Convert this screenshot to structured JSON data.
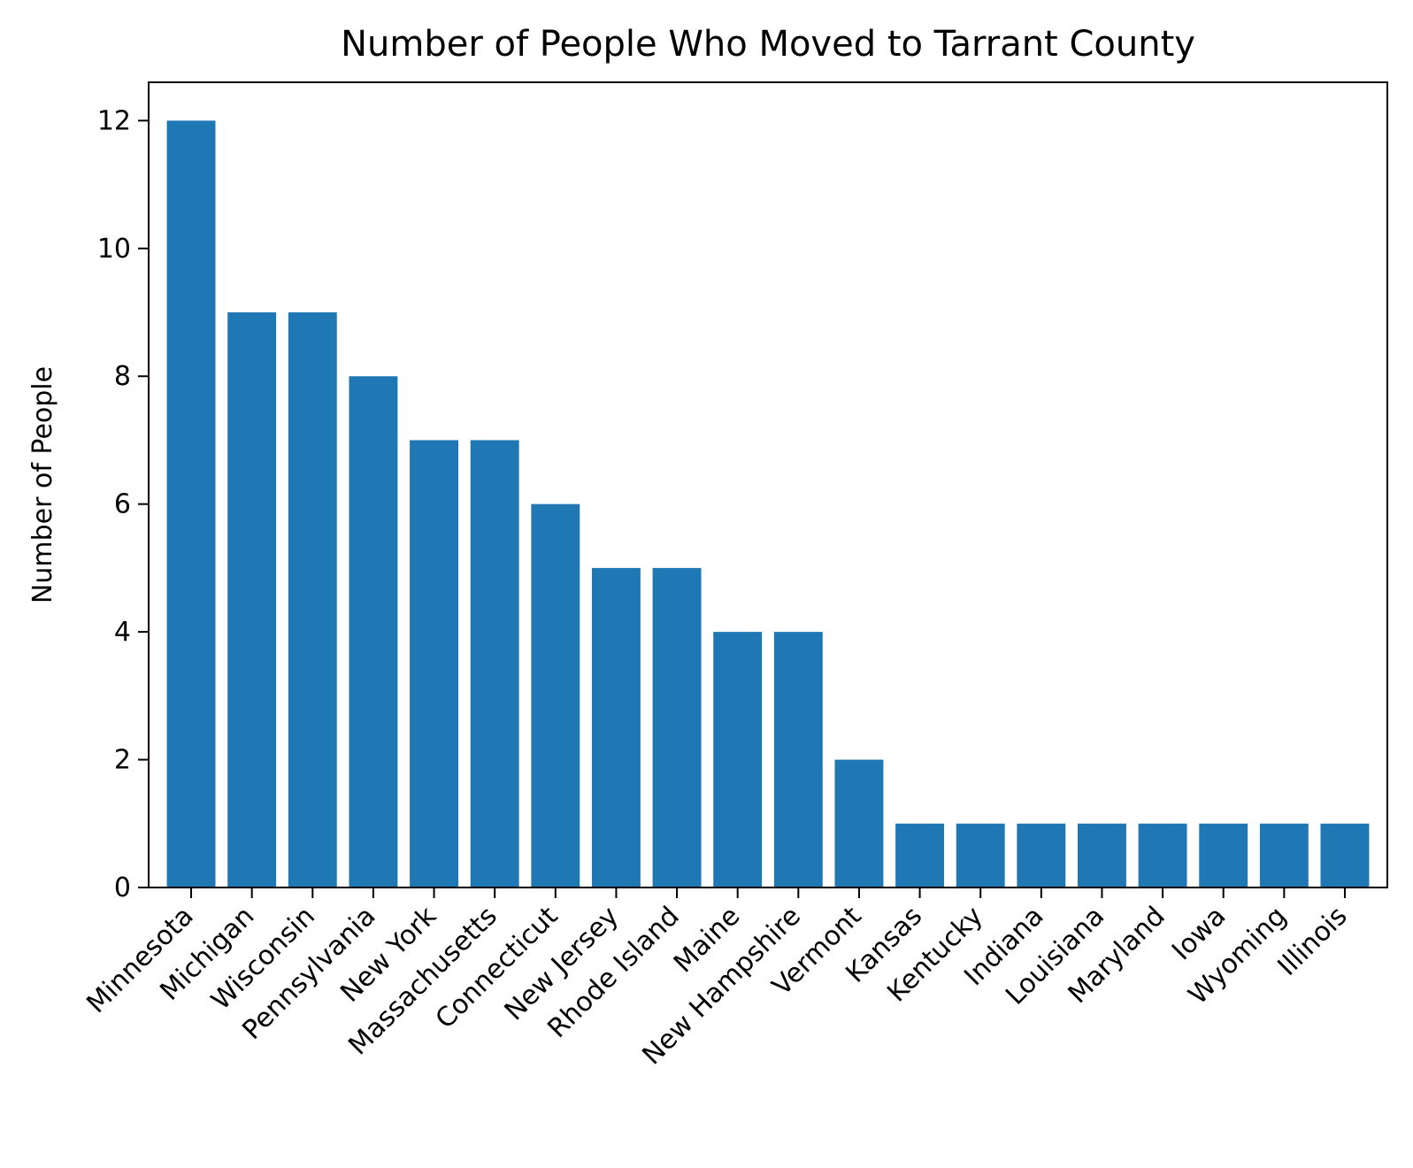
{
  "chart_data": {
    "type": "bar",
    "title": "Number of People Who Moved to Tarrant County",
    "xlabel": "",
    "ylabel": "Number of People",
    "categories": [
      "Minnesota",
      "Michigan",
      "Wisconsin",
      "Pennsylvania",
      "New York",
      "Massachusetts",
      "Connecticut",
      "New Jersey",
      "Rhode Island",
      "Maine",
      "New Hampshire",
      "Vermont",
      "Kansas",
      "Kentucky",
      "Indiana",
      "Louisiana",
      "Maryland",
      "Iowa",
      "Wyoming",
      "Illinois"
    ],
    "values": [
      12,
      9,
      9,
      8,
      7,
      7,
      6,
      5,
      5,
      4,
      4,
      2,
      1,
      1,
      1,
      1,
      1,
      1,
      1,
      1
    ],
    "ylim": [
      0,
      12.6
    ],
    "yticks": [
      0,
      2,
      4,
      6,
      8,
      10,
      12
    ],
    "grid": false,
    "bar_color": "#1f77b4",
    "xtick_rotation": "45 degrees"
  }
}
